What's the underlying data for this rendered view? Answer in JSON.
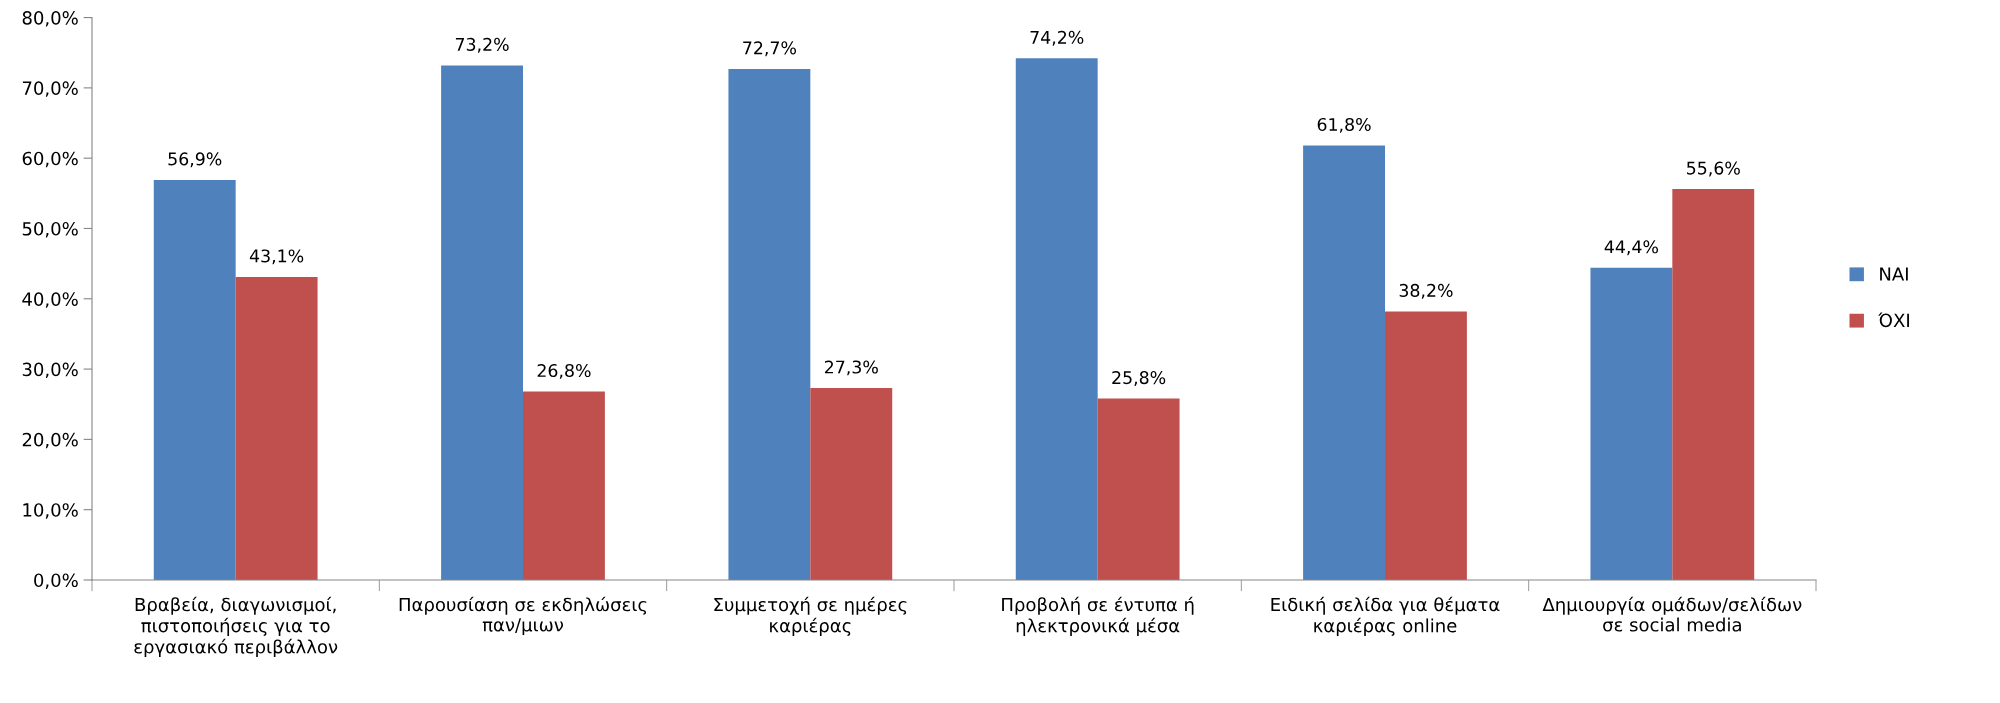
{
  "chart_data": {
    "type": "bar",
    "categories": [
      "Βραβεία, διαγωνισμοί,\nπιστοποιήσεις για το\nεργασιακό περιβάλλον",
      "Παρουσίαση σε εκδηλώσεις\nπαν/μιων",
      "Συμμετοχή σε ημέρες\nκαριέρας",
      "Προβολή σε έντυπα ή\nηλεκτρονικά μέσα",
      "Ειδική σελίδα για θέματα\nκαριέρας online",
      "Δημιουργία ομάδων/σελίδων\nσε social media"
    ],
    "series": [
      {
        "name": "ΝΑΙ",
        "color": "#4f81bd",
        "values": [
          56.9,
          73.2,
          72.7,
          74.2,
          61.8,
          44.4
        ],
        "value_labels": [
          "56,9%",
          "73,2%",
          "72,7%",
          "74,2%",
          "61,8%",
          "44,4%"
        ]
      },
      {
        "name": "ΌΧΙ",
        "color": "#c0504d",
        "values": [
          43.1,
          26.8,
          27.3,
          25.8,
          38.2,
          55.6
        ],
        "value_labels": [
          "43,1%",
          "26,8%",
          "27,3%",
          "25,8%",
          "38,2%",
          "55,6%"
        ]
      }
    ],
    "ylim": [
      0,
      80
    ],
    "yticks": [
      {
        "value": 0,
        "label": "0,0%"
      },
      {
        "value": 10,
        "label": "10,0%"
      },
      {
        "value": 20,
        "label": "20,0%"
      },
      {
        "value": 30,
        "label": "30,0%"
      },
      {
        "value": 40,
        "label": "40,0%"
      },
      {
        "value": 50,
        "label": "50,0%"
      },
      {
        "value": 60,
        "label": "60,0%"
      },
      {
        "value": 70,
        "label": "70,0%"
      },
      {
        "value": 80,
        "label": "80,0%"
      }
    ],
    "grid": false,
    "legend": "right"
  }
}
